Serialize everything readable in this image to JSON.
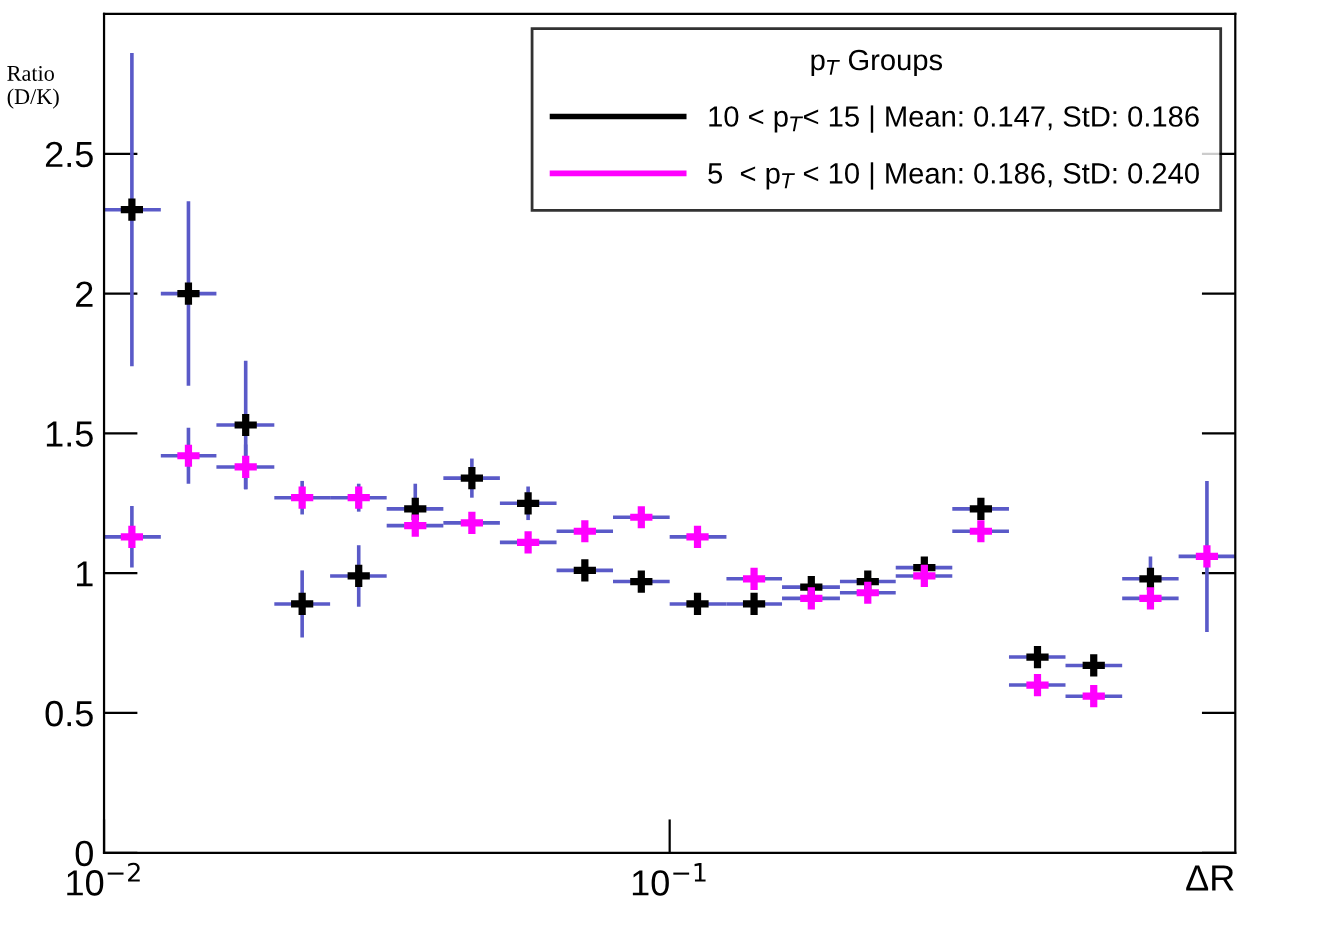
{
  "chart_data": {
    "type": "scatter",
    "xlabel": "ΔR",
    "ylabel": "Ratio\n(D/K)",
    "legend_title": "p$_{T}$ Groups",
    "log": "x",
    "xlim": [
      0.01,
      1.0
    ],
    "xticks": [
      {
        "value": 0.01,
        "label": "10$^{−2}$"
      },
      {
        "value": 0.1,
        "label": "10$^{−1}$"
      }
    ],
    "ylim": [
      0,
      3.0
    ],
    "yticks": [
      0,
      0.5,
      1,
      1.5,
      2,
      2.5
    ],
    "grid": false,
    "legend": "top right",
    "marker": "cross",
    "series": [
      {
        "name": "10 < p$_{T}$< 15 | Mean: 0.147, StD: 0.186",
        "color": "#000000",
        "x": [
          0.0112,
          0.0141,
          0.0178,
          0.0224,
          0.0282,
          0.0355,
          0.0447,
          0.0562,
          0.0708,
          0.0891,
          0.112,
          0.141,
          0.178,
          0.224,
          0.282,
          0.355,
          0.447,
          0.562,
          0.708
        ],
        "values": [
          2.3,
          2.0,
          1.53,
          0.89,
          0.99,
          1.23,
          1.34,
          1.25,
          1.01,
          0.97,
          0.89,
          0.89,
          0.95,
          0.97,
          1.02,
          1.23,
          0.7,
          0.67,
          0.98
        ],
        "errors": [
          0.56,
          0.33,
          0.23,
          0.12,
          0.11,
          0.09,
          0.07,
          0.06,
          null,
          null,
          null,
          null,
          null,
          null,
          null,
          null,
          null,
          null,
          0.08
        ],
        "xerrors": [
          [
            0.01,
            0.0126
          ],
          [
            0.0126,
            0.0158
          ],
          [
            0.0158,
            0.02
          ],
          [
            0.02,
            0.0251
          ],
          [
            0.0251,
            0.0316
          ],
          [
            0.0316,
            0.0398
          ],
          [
            0.0398,
            0.0501
          ],
          [
            0.0501,
            0.0631
          ],
          [
            0.0631,
            0.0794
          ],
          [
            0.0794,
            0.1
          ],
          [
            0.1,
            0.126
          ],
          [
            0.126,
            0.158
          ],
          [
            0.158,
            0.2
          ],
          [
            0.2,
            0.251
          ],
          [
            0.251,
            0.316
          ],
          [
            0.316,
            0.398
          ],
          [
            0.398,
            0.501
          ],
          [
            0.501,
            0.631
          ],
          [
            0.631,
            0.794
          ]
        ]
      },
      {
        "name": "5  < p$_{T}$ < 10 | Mean: 0.186, StD: 0.240",
        "color": "#ff00ff",
        "x": [
          0.0112,
          0.0141,
          0.0178,
          0.0224,
          0.0282,
          0.0355,
          0.0447,
          0.0562,
          0.0708,
          0.0891,
          0.112,
          0.141,
          0.178,
          0.224,
          0.282,
          0.355,
          0.447,
          0.562,
          0.708,
          0.891
        ],
        "values": [
          1.13,
          1.42,
          1.38,
          1.27,
          1.27,
          1.17,
          1.18,
          1.11,
          1.15,
          1.2,
          1.13,
          0.98,
          0.91,
          0.93,
          0.99,
          1.15,
          0.6,
          0.56,
          0.91,
          1.06
        ],
        "errors": [
          0.11,
          0.1,
          0.08,
          0.06,
          0.05,
          null,
          null,
          null,
          null,
          null,
          null,
          null,
          null,
          null,
          null,
          null,
          null,
          null,
          null,
          0.27
        ],
        "xerrors": [
          [
            0.01,
            0.0126
          ],
          [
            0.0126,
            0.0158
          ],
          [
            0.0158,
            0.02
          ],
          [
            0.02,
            0.0251
          ],
          [
            0.0251,
            0.0316
          ],
          [
            0.0316,
            0.0398
          ],
          [
            0.0398,
            0.0501
          ],
          [
            0.0501,
            0.0631
          ],
          [
            0.0631,
            0.0794
          ],
          [
            0.0794,
            0.1
          ],
          [
            0.1,
            0.126
          ],
          [
            0.126,
            0.158
          ],
          [
            0.158,
            0.2
          ],
          [
            0.2,
            0.251
          ],
          [
            0.251,
            0.316
          ],
          [
            0.316,
            0.398
          ],
          [
            0.398,
            0.501
          ],
          [
            0.501,
            0.631
          ],
          [
            0.631,
            0.794
          ],
          [
            0.794,
            1.0
          ]
        ]
      }
    ]
  }
}
